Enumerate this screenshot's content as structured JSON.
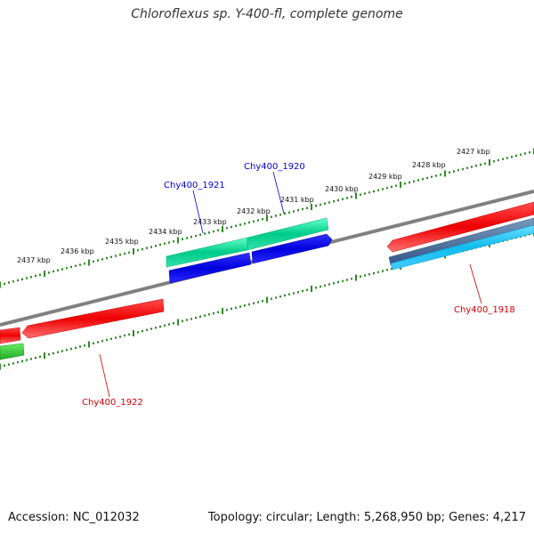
{
  "title": "Chloroflexus sp. Y-400-fl, complete genome",
  "footer": {
    "accession": "Accession: NC_012032",
    "summary": "Topology: circular; Length: 5,268,950 bp; Genes: 4,217"
  },
  "ruler": {
    "ticks": [
      "2427 kbp",
      "2428 kbp",
      "2429 kbp",
      "2430 kbp",
      "2431 kbp",
      "2432 kbp",
      "2433 kbp",
      "2434 kbp",
      "2435 kbp",
      "2436 kbp",
      "2437 kbp"
    ]
  },
  "genes": {
    "g1918": "Chy400_1918",
    "g1920": "Chy400_1920",
    "g1921": "Chy400_1921",
    "g1922": "Chy400_1922"
  },
  "colors": {
    "backbone": "#808080",
    "ruler": "#2e8b22",
    "forward_cds": "#00cc99",
    "forward_gene": "#0000ee",
    "reverse_cds": "#ee0000",
    "reverse_gene": "#22ccff",
    "reverse_gene_dark": "#4477aa",
    "label_forward": "#0000cc",
    "label_reverse": "#cc0000"
  }
}
